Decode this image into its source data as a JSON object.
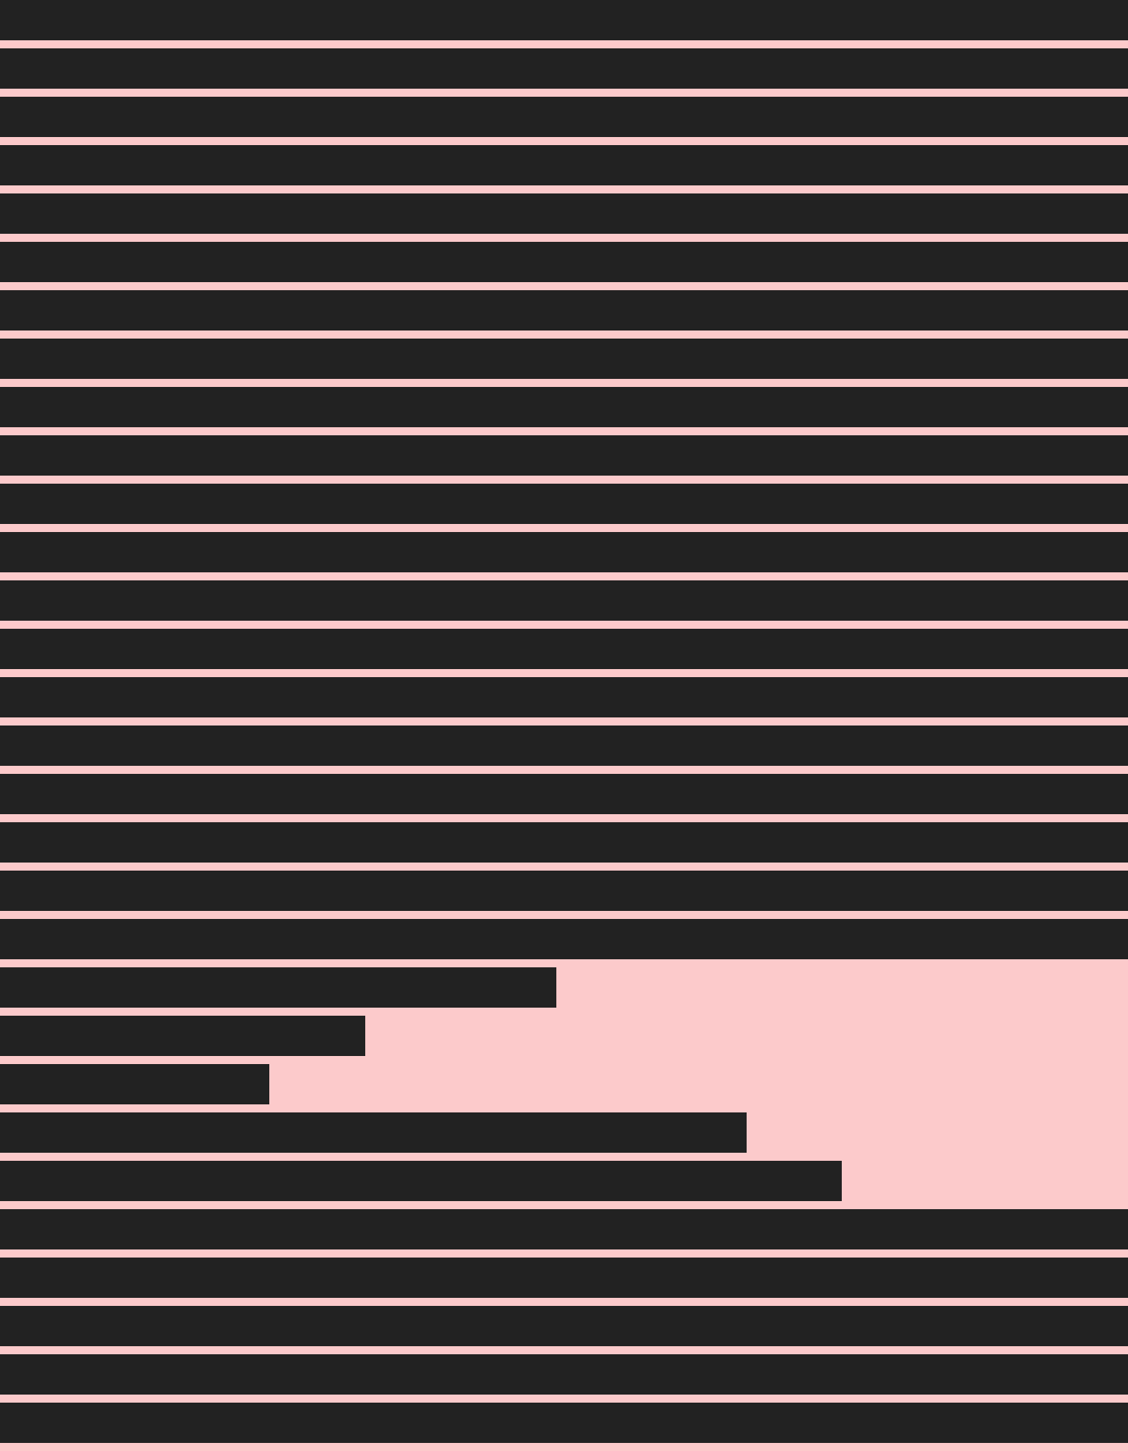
{
  "colors": {
    "background": "#fccacb",
    "stripe": "#222222"
  },
  "stripes": [
    {
      "fill": 1.0
    },
    {
      "fill": 1.0
    },
    {
      "fill": 1.0
    },
    {
      "fill": 1.0
    },
    {
      "fill": 1.0
    },
    {
      "fill": 1.0
    },
    {
      "fill": 1.0
    },
    {
      "fill": 1.0
    },
    {
      "fill": 1.0
    },
    {
      "fill": 1.0
    },
    {
      "fill": 1.0
    },
    {
      "fill": 1.0
    },
    {
      "fill": 1.0
    },
    {
      "fill": 1.0
    },
    {
      "fill": 1.0
    },
    {
      "fill": 1.0
    },
    {
      "fill": 1.0
    },
    {
      "fill": 1.0
    },
    {
      "fill": 1.0
    },
    {
      "fill": 1.0
    },
    {
      "fill": 0.493
    },
    {
      "fill": 0.324
    },
    {
      "fill": 0.239
    },
    {
      "fill": 0.662
    },
    {
      "fill": 0.746
    },
    {
      "fill": 1.0
    },
    {
      "fill": 1.0
    },
    {
      "fill": 1.0
    },
    {
      "fill": 1.0
    },
    {
      "fill": 1.0
    }
  ]
}
